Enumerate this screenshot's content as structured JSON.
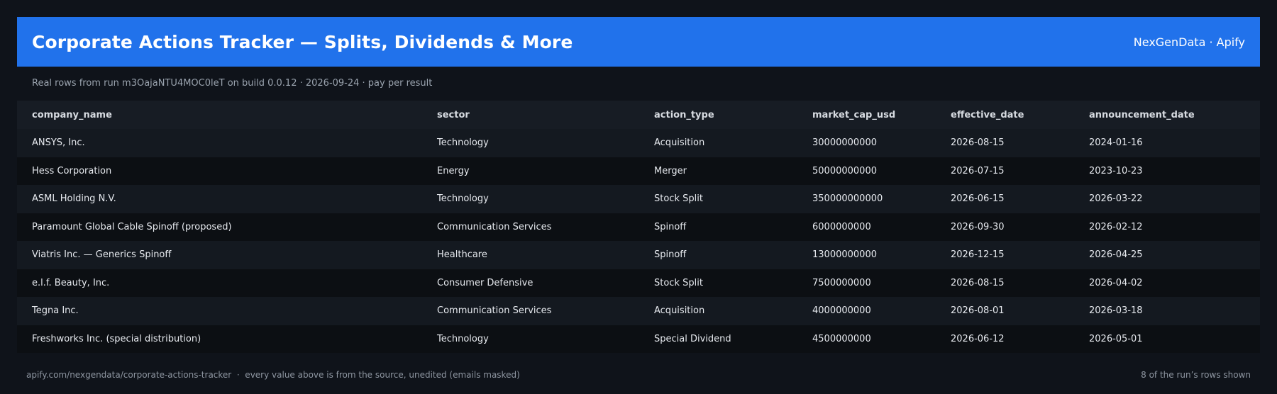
{
  "header": {
    "title": "Corporate Actions Tracker — Splits, Dividends & More",
    "brand": "NexGenData · Apify"
  },
  "subtitle": "Real rows from run m3OajaNTU4MOC0leT on build 0.0.12 · 2026-09-24 · pay per result",
  "table": {
    "columns": [
      "company_name",
      "sector",
      "action_type",
      "market_cap_usd",
      "effective_date",
      "announcement_date"
    ],
    "rows": [
      [
        "ANSYS, Inc.",
        "Technology",
        "Acquisition",
        "30000000000",
        "2026-08-15",
        "2024-01-16"
      ],
      [
        "Hess Corporation",
        "Energy",
        "Merger",
        "50000000000",
        "2026-07-15",
        "2023-10-23"
      ],
      [
        "ASML Holding N.V.",
        "Technology",
        "Stock Split",
        "350000000000",
        "2026-06-15",
        "2026-03-22"
      ],
      [
        "Paramount Global Cable Spinoff (proposed)",
        "Communication Services",
        "Spinoff",
        "6000000000",
        "2026-09-30",
        "2026-02-12"
      ],
      [
        "Viatris Inc. — Generics Spinoff",
        "Healthcare",
        "Spinoff",
        "13000000000",
        "2026-12-15",
        "2026-04-25"
      ],
      [
        "e.l.f. Beauty, Inc.",
        "Consumer Defensive",
        "Stock Split",
        "7500000000",
        "2026-08-15",
        "2026-04-02"
      ],
      [
        "Tegna Inc.",
        "Communication Services",
        "Acquisition",
        "4000000000",
        "2026-08-01",
        "2026-03-18"
      ],
      [
        "Freshworks Inc. (special distribution)",
        "Technology",
        "Special Dividend",
        "4500000000",
        "2026-06-12",
        "2026-05-01"
      ]
    ]
  },
  "footer": {
    "left": "apify.com/nexgendata/corporate-actions-tracker  ·  every value above is from the source, unedited (emails masked)",
    "right": "8 of the run’s rows shown"
  }
}
